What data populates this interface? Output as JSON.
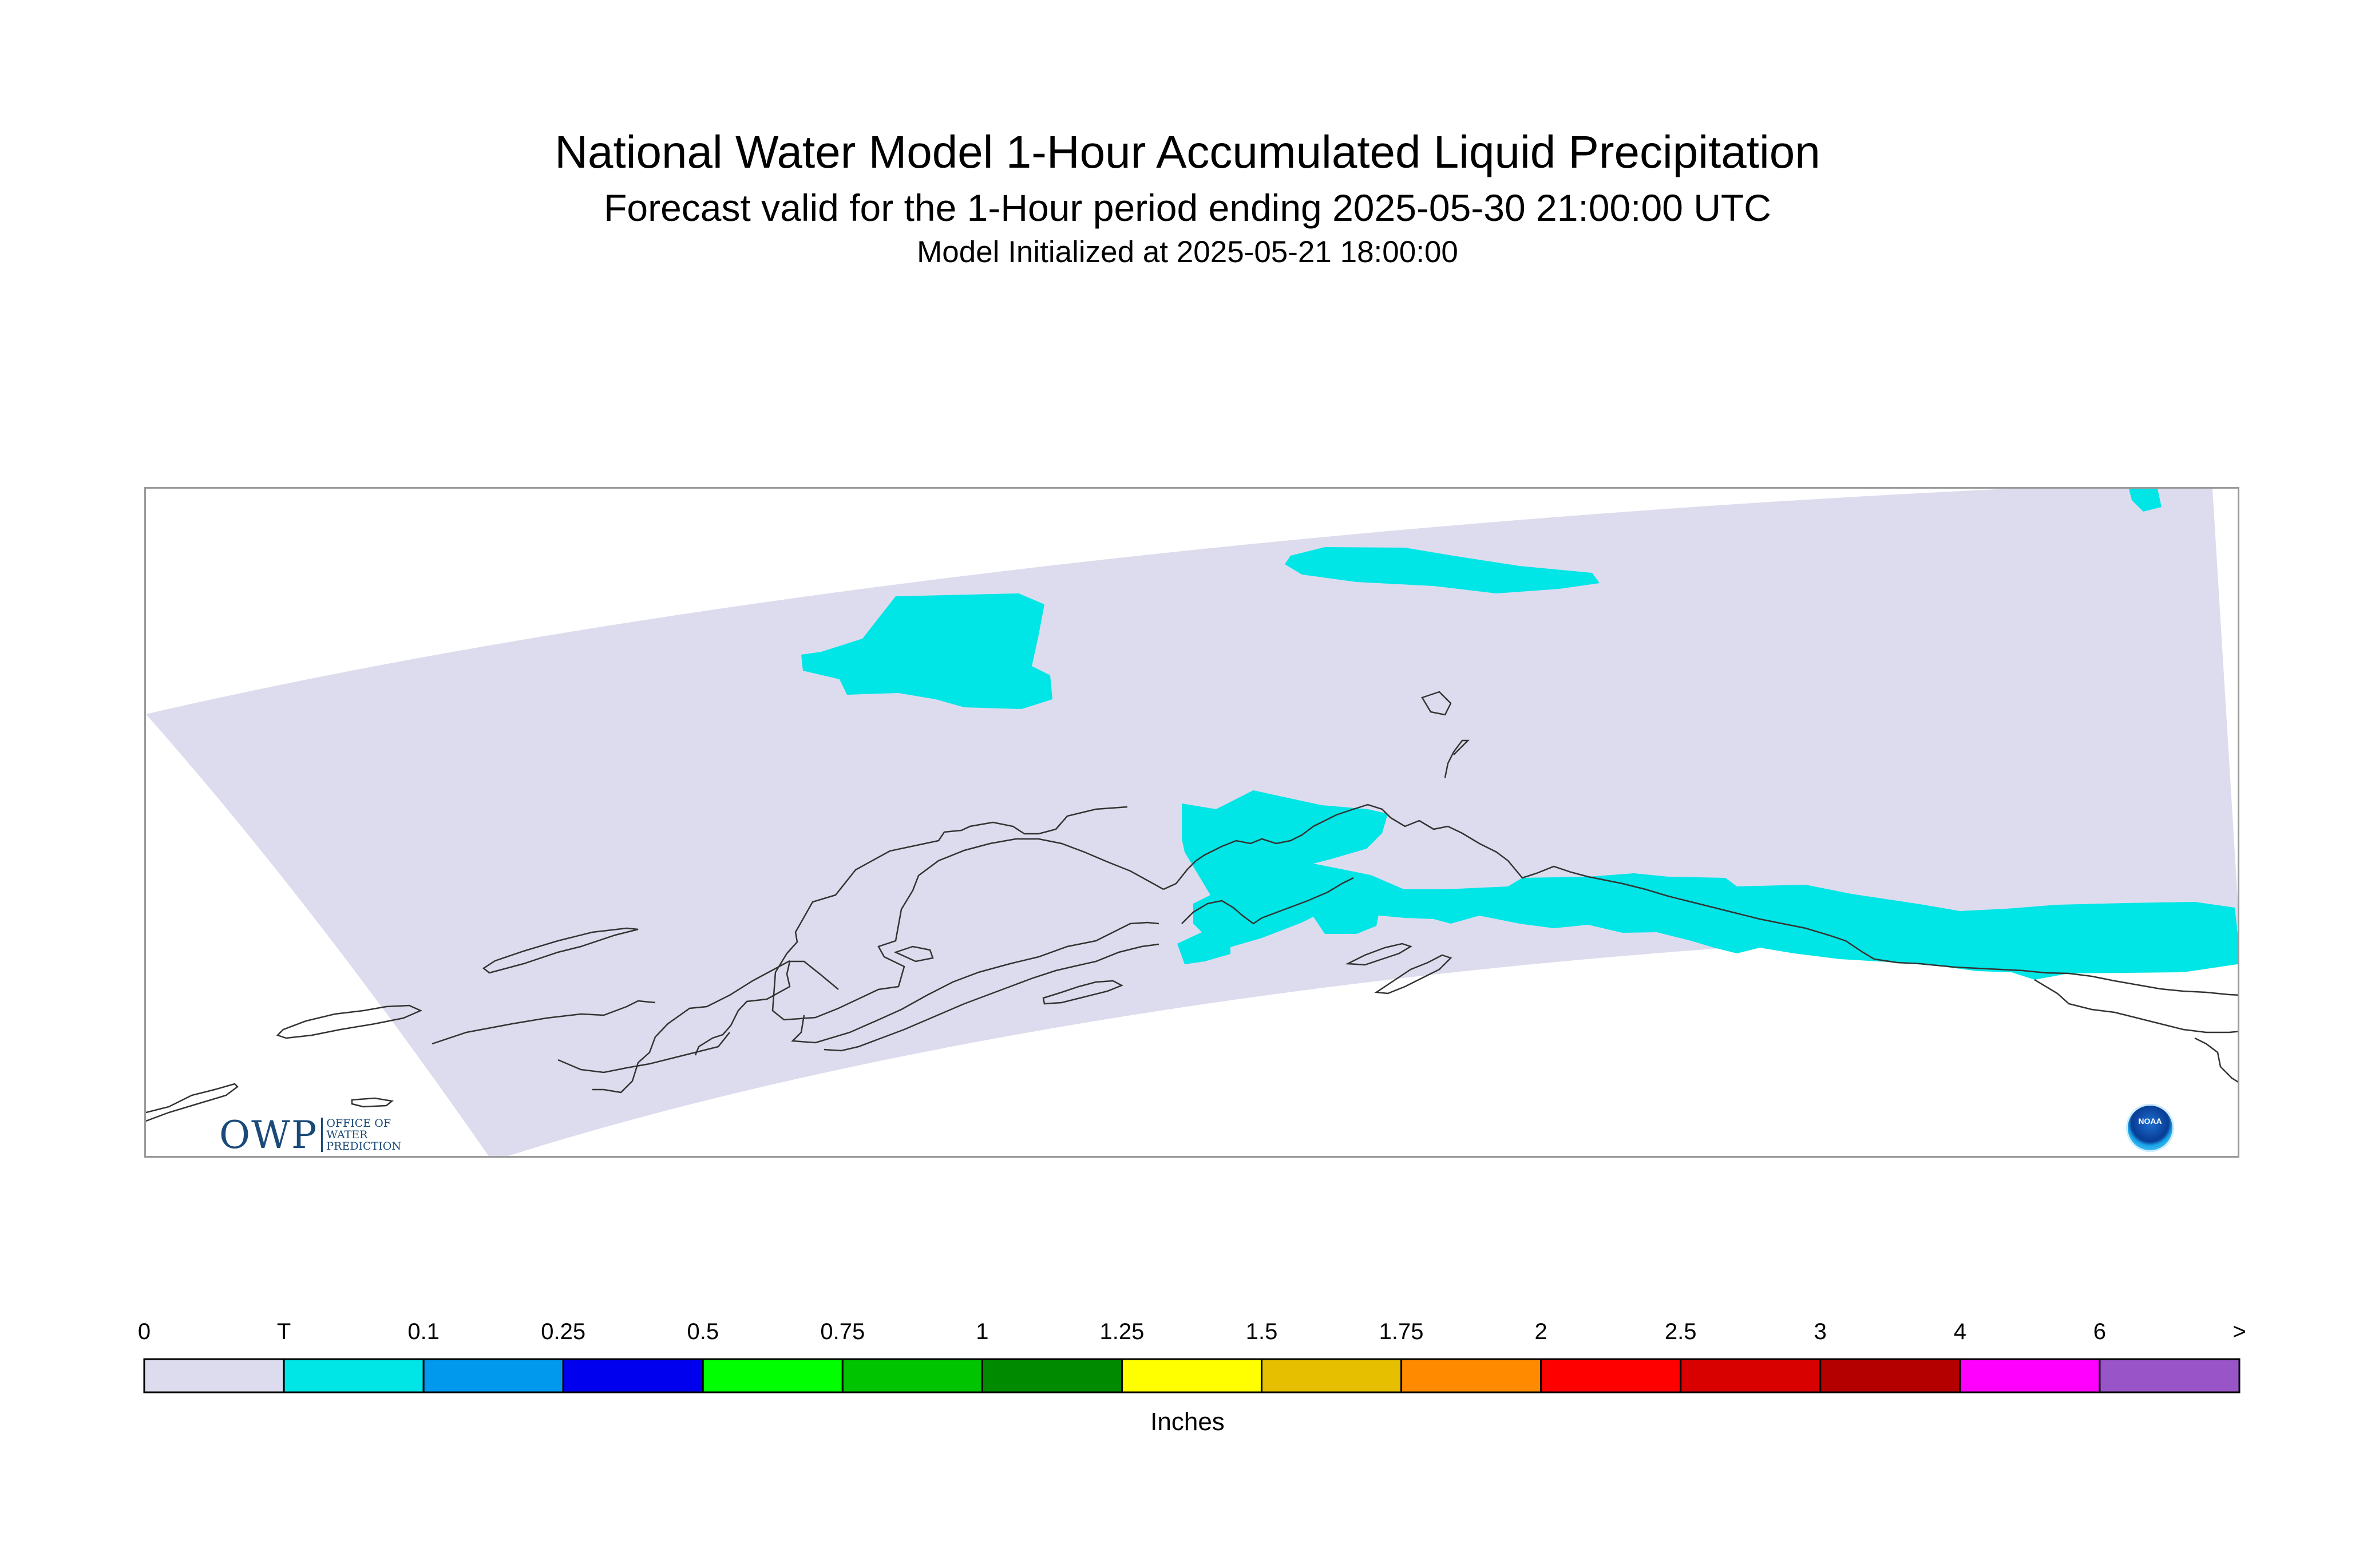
{
  "header": {
    "title": "National Water Model 1-Hour Accumulated Liquid Precipitation",
    "subtitle": "Forecast valid for the 1-Hour period ending 2025-05-30 21:00:00 UTC",
    "init": "Model Initialized at 2025-05-21 18:00:00"
  },
  "map": {
    "region": "Alaska",
    "domain_fill": "#dcdcee",
    "precip_fill": "#00e5e5",
    "coast_color": "#333333"
  },
  "logos": {
    "owp_text": "OWP",
    "owp_sub1": "OFFICE OF",
    "owp_sub2": "WATER",
    "owp_sub3": "PREDICTION",
    "noaa_text": "NOAA"
  },
  "legend": {
    "units": "Inches",
    "labels": [
      "0",
      "T",
      "0.1",
      "0.25",
      "0.5",
      "0.75",
      "1",
      "1.25",
      "1.5",
      "1.75",
      "2",
      "2.5",
      "3",
      "4",
      "6",
      ">"
    ],
    "colors": [
      "#dcdcee",
      "#00e5e5",
      "#0099ee",
      "#0000ee",
      "#00ff00",
      "#00c400",
      "#008a00",
      "#ffff00",
      "#e5bf00",
      "#ff8a00",
      "#ff0000",
      "#d90000",
      "#b50000",
      "#ff00ff",
      "#9955c8"
    ]
  }
}
